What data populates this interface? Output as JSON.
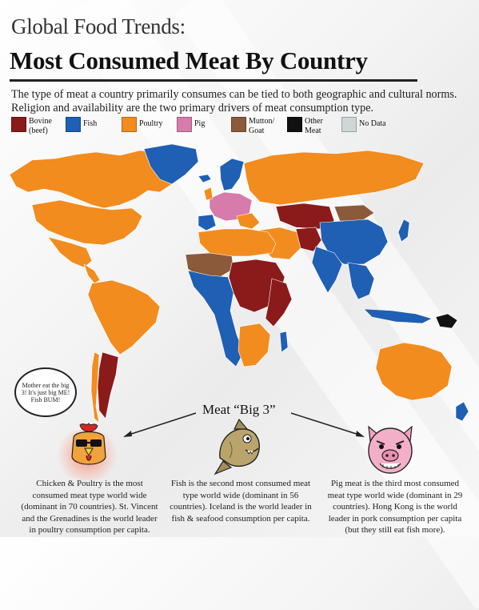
{
  "header": {
    "kicker": "Global Food Trends:",
    "title": "Most Consumed Meat By Country",
    "intro": "The type of meat a country primarily consumes can be tied to both geographic and cultural norms. Religion and availability are the two primary drivers of meat consumption type."
  },
  "legend": [
    {
      "label": "Bovine (beef)",
      "color": "#8b1a1a"
    },
    {
      "label": "Fish",
      "color": "#1f5fb4"
    },
    {
      "label": "Poultry",
      "color": "#f28c1e"
    },
    {
      "label": "Pig",
      "color": "#d77bac"
    },
    {
      "label": "Mutton/ Goat",
      "color": "#8b5a3a"
    },
    {
      "label": "Other Meat",
      "color": "#111111"
    },
    {
      "label": "No Data",
      "color": "#cfd6d6"
    }
  ],
  "bubble": {
    "text": "Mother eat the big 3! It's just big ME! Fish BUM!"
  },
  "big3": {
    "label": "Meat “Big 3”"
  },
  "captions": {
    "poultry": "Chicken & Poultry is the most consumed meat type world wide (dominant in 70 countries). St. Vincent and the Grenadines is the world leader in poultry consumption per capita.",
    "fish": "Fish is the second most consumed meat type world wide (dominant in 56 countries). Iceland is the world leader in fish & seafood consumption per capita.",
    "pig": "Pig meat is the third most consumed meat type world wide (dominant in 29 countries). Hong Kong is the world leader in pork consumption per capita (but they still eat fish more)."
  },
  "icons": {
    "poultry": "rooster-icon",
    "fish": "fish-icon",
    "pig": "pig-icon"
  }
}
